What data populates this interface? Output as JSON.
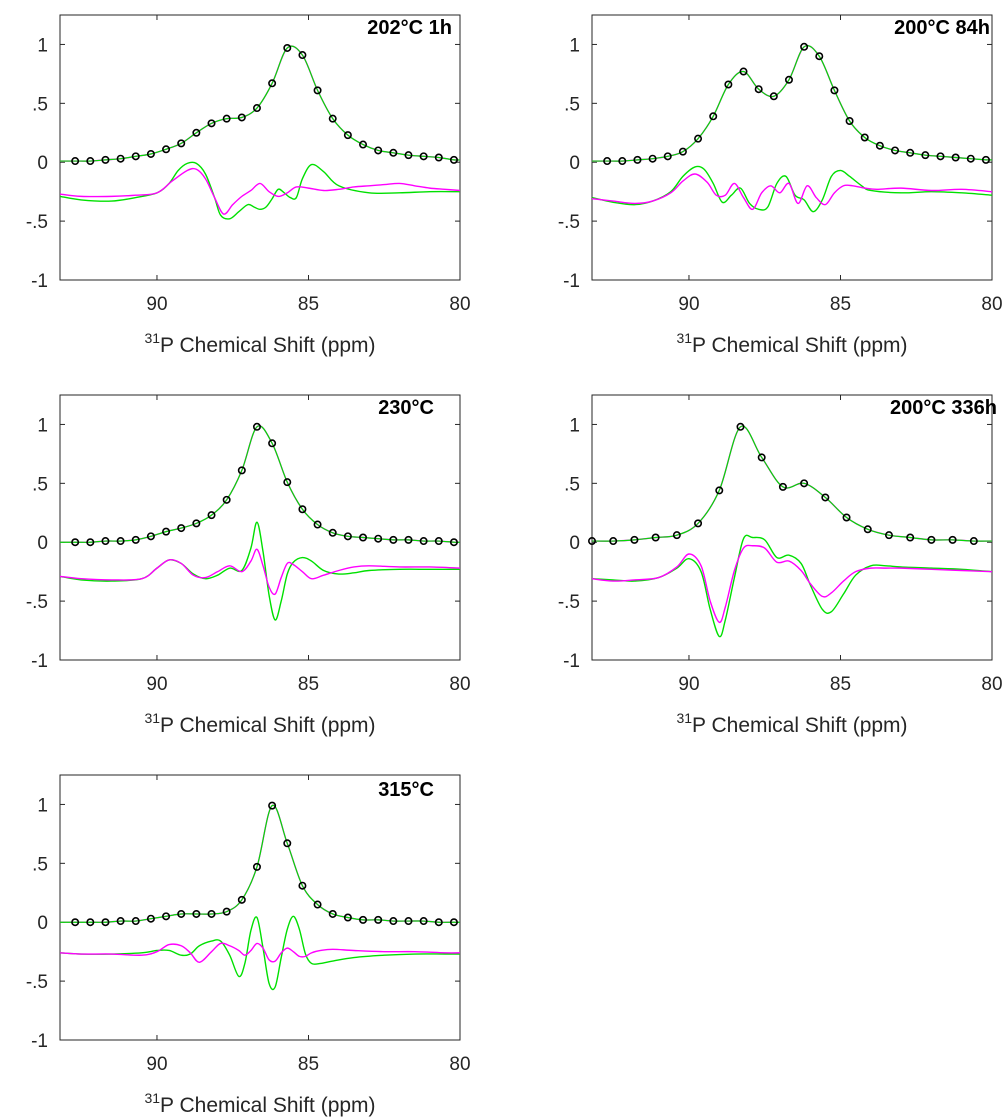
{
  "colors": {
    "fit_magenta": "#ff00ff",
    "fit_green": "#00e000",
    "marker": "#000000",
    "axes": "#262626"
  },
  "chart_data": [
    {
      "type": "line",
      "title": "202°C 1h",
      "xlabel": "31P Chemical Shift (ppm)",
      "xlabel_sup": "31",
      "xlabel_rest": "P Chemical Shift (ppm)",
      "xlim": [
        93.2,
        80
      ],
      "ylim": [
        -1,
        1.25
      ],
      "xticks": [
        90,
        85,
        80
      ],
      "yticks": [
        -1,
        -0.5,
        0,
        0.5,
        1
      ],
      "scatter_x": [
        92.7,
        92.2,
        91.7,
        91.2,
        90.7,
        90.2,
        89.7,
        89.2,
        88.7,
        88.2,
        87.7,
        87.2,
        86.7,
        86.2,
        85.7,
        85.2,
        84.7,
        84.2,
        83.7,
        83.2,
        82.7,
        82.2,
        81.7,
        81.2,
        80.7,
        80.2
      ],
      "scatter_y": [
        0.01,
        0.01,
        0.02,
        0.03,
        0.05,
        0.07,
        0.11,
        0.16,
        0.25,
        0.33,
        0.37,
        0.38,
        0.46,
        0.67,
        0.97,
        0.91,
        0.61,
        0.37,
        0.23,
        0.15,
        0.1,
        0.08,
        0.06,
        0.05,
        0.04,
        0.02
      ],
      "series": [
        {
          "color": "#00e000",
          "x": [
            93.2,
            92.5,
            91.5,
            90.7,
            90.0,
            89.6,
            89.3,
            89.0,
            88.7,
            88.4,
            88.1,
            87.9,
            87.6,
            87.3,
            87.0,
            86.8,
            86.6,
            86.4,
            86.2,
            86.0,
            85.8,
            85.6,
            85.4,
            85.2,
            84.9,
            84.5,
            84.0,
            83.0,
            82.0,
            81.0,
            80.0
          ],
          "y": [
            -0.29,
            -0.32,
            -0.33,
            -0.3,
            -0.26,
            -0.18,
            -0.07,
            -0.01,
            -0.01,
            -0.1,
            -0.3,
            -0.45,
            -0.48,
            -0.42,
            -0.36,
            -0.38,
            -0.4,
            -0.38,
            -0.31,
            -0.23,
            -0.26,
            -0.3,
            -0.3,
            -0.14,
            -0.02,
            -0.08,
            -0.2,
            -0.26,
            -0.26,
            -0.25,
            -0.25
          ]
        },
        {
          "color": "#ff00ff",
          "x": [
            93.2,
            92.5,
            91.5,
            90.7,
            90.0,
            89.5,
            89.0,
            88.7,
            88.4,
            88.1,
            87.8,
            87.5,
            87.2,
            86.9,
            86.6,
            86.3,
            86.0,
            85.7,
            85.4,
            85.0,
            84.5,
            84.0,
            83.5,
            83.0,
            82.5,
            82.0,
            81.5,
            81.0,
            80.5,
            80.0
          ],
          "y": [
            -0.27,
            -0.29,
            -0.29,
            -0.28,
            -0.26,
            -0.16,
            -0.07,
            -0.06,
            -0.14,
            -0.3,
            -0.44,
            -0.36,
            -0.29,
            -0.24,
            -0.18,
            -0.25,
            -0.29,
            -0.26,
            -0.21,
            -0.22,
            -0.24,
            -0.23,
            -0.21,
            -0.2,
            -0.19,
            -0.18,
            -0.2,
            -0.22,
            -0.23,
            -0.24
          ]
        }
      ]
    },
    {
      "type": "line",
      "title": "200°C 84h",
      "xlabel": "31P Chemical Shift (ppm)",
      "xlabel_sup": "31",
      "xlabel_rest": "P Chemical Shift (ppm)",
      "xlim": [
        93.2,
        80
      ],
      "ylim": [
        -1,
        1.25
      ],
      "xticks": [
        90,
        85,
        80
      ],
      "yticks": [
        -1,
        -0.5,
        0,
        0.5,
        1
      ],
      "scatter_x": [
        92.7,
        92.2,
        91.7,
        91.2,
        90.7,
        90.2,
        89.7,
        89.2,
        88.7,
        88.2,
        87.7,
        87.2,
        86.7,
        86.2,
        85.7,
        85.2,
        84.7,
        84.2,
        83.7,
        83.2,
        82.7,
        82.2,
        81.7,
        81.2,
        80.7,
        80.2
      ],
      "scatter_y": [
        0.01,
        0.01,
        0.02,
        0.03,
        0.05,
        0.09,
        0.2,
        0.39,
        0.66,
        0.77,
        0.62,
        0.56,
        0.7,
        0.98,
        0.9,
        0.61,
        0.35,
        0.21,
        0.14,
        0.1,
        0.08,
        0.06,
        0.05,
        0.04,
        0.03,
        0.02
      ],
      "series": [
        {
          "color": "#00e000",
          "x": [
            93.2,
            92.5,
            91.8,
            91.2,
            90.6,
            90.2,
            89.8,
            89.5,
            89.2,
            88.9,
            88.6,
            88.3,
            88.0,
            87.7,
            87.4,
            87.1,
            86.8,
            86.5,
            86.2,
            85.9,
            85.6,
            85.3,
            85.0,
            84.7,
            84.3,
            84.0,
            83.0,
            82.0,
            81.0,
            80.0
          ],
          "y": [
            -0.3,
            -0.34,
            -0.36,
            -0.33,
            -0.25,
            -0.12,
            -0.04,
            -0.06,
            -0.18,
            -0.34,
            -0.28,
            -0.22,
            -0.35,
            -0.4,
            -0.38,
            -0.18,
            -0.12,
            -0.28,
            -0.32,
            -0.42,
            -0.32,
            -0.12,
            -0.07,
            -0.12,
            -0.2,
            -0.24,
            -0.26,
            -0.25,
            -0.26,
            -0.28
          ]
        },
        {
          "color": "#ff00ff",
          "x": [
            93.2,
            92.5,
            91.8,
            91.2,
            90.6,
            90.2,
            89.8,
            89.4,
            89.1,
            88.8,
            88.5,
            88.2,
            87.9,
            87.6,
            87.3,
            87.0,
            86.7,
            86.4,
            86.1,
            85.8,
            85.5,
            85.2,
            84.9,
            84.6,
            84.2,
            83.8,
            83.0,
            82.0,
            81.0,
            80.0
          ],
          "y": [
            -0.31,
            -0.33,
            -0.35,
            -0.33,
            -0.26,
            -0.16,
            -0.1,
            -0.17,
            -0.28,
            -0.28,
            -0.18,
            -0.3,
            -0.4,
            -0.26,
            -0.2,
            -0.26,
            -0.18,
            -0.35,
            -0.2,
            -0.3,
            -0.36,
            -0.26,
            -0.2,
            -0.2,
            -0.22,
            -0.23,
            -0.22,
            -0.24,
            -0.23,
            -0.25
          ]
        }
      ]
    },
    {
      "type": "line",
      "title": "230°C",
      "xlabel": "31P Chemical Shift (ppm)",
      "xlabel_sup": "31",
      "xlabel_rest": "P Chemical Shift (ppm)",
      "xlim": [
        93.2,
        80
      ],
      "ylim": [
        -1,
        1.25
      ],
      "xticks": [
        90,
        85,
        80
      ],
      "yticks": [
        -1,
        -0.5,
        0,
        0.5,
        1
      ],
      "scatter_x": [
        92.7,
        92.2,
        91.7,
        91.2,
        90.7,
        90.2,
        89.7,
        89.2,
        88.7,
        88.2,
        87.7,
        87.2,
        86.7,
        86.2,
        85.7,
        85.2,
        84.7,
        84.2,
        83.7,
        83.2,
        82.7,
        82.2,
        81.7,
        81.2,
        80.7,
        80.2
      ],
      "scatter_y": [
        0.0,
        0.0,
        0.01,
        0.01,
        0.02,
        0.05,
        0.09,
        0.12,
        0.16,
        0.23,
        0.36,
        0.61,
        0.98,
        0.84,
        0.51,
        0.28,
        0.15,
        0.08,
        0.05,
        0.04,
        0.03,
        0.02,
        0.02,
        0.01,
        0.01,
        0.0
      ],
      "series": [
        {
          "color": "#00e000",
          "x": [
            93.2,
            92.5,
            91.5,
            90.5,
            90.0,
            89.6,
            89.2,
            88.8,
            88.4,
            88.0,
            87.6,
            87.2,
            86.9,
            86.7,
            86.5,
            86.3,
            86.1,
            85.9,
            85.7,
            85.5,
            85.2,
            84.9,
            84.5,
            84.0,
            83.5,
            83.0,
            82.0,
            81.0,
            80.0
          ],
          "y": [
            -0.29,
            -0.32,
            -0.33,
            -0.31,
            -0.22,
            -0.15,
            -0.18,
            -0.27,
            -0.31,
            -0.28,
            -0.22,
            -0.24,
            -0.05,
            0.17,
            -0.08,
            -0.45,
            -0.66,
            -0.5,
            -0.27,
            -0.17,
            -0.13,
            -0.16,
            -0.24,
            -0.27,
            -0.26,
            -0.24,
            -0.23,
            -0.23,
            -0.23
          ]
        },
        {
          "color": "#ff00ff",
          "x": [
            93.2,
            92.5,
            91.5,
            90.5,
            90.0,
            89.6,
            89.2,
            88.8,
            88.4,
            88.0,
            87.6,
            87.2,
            86.9,
            86.7,
            86.5,
            86.3,
            86.1,
            85.9,
            85.7,
            85.5,
            85.2,
            84.9,
            84.5,
            84.0,
            83.5,
            83.0,
            82.0,
            81.0,
            80.0
          ],
          "y": [
            -0.29,
            -0.31,
            -0.32,
            -0.31,
            -0.22,
            -0.15,
            -0.18,
            -0.28,
            -0.3,
            -0.25,
            -0.2,
            -0.25,
            -0.16,
            -0.06,
            -0.2,
            -0.38,
            -0.44,
            -0.3,
            -0.18,
            -0.19,
            -0.25,
            -0.31,
            -0.28,
            -0.24,
            -0.21,
            -0.2,
            -0.21,
            -0.21,
            -0.22
          ]
        }
      ]
    },
    {
      "type": "line",
      "title": "200°C 336h",
      "xlabel": "31P Chemical Shift (ppm)",
      "xlabel_sup": "31",
      "xlabel_rest": "P Chemical Shift (ppm)",
      "xlim": [
        93.2,
        80
      ],
      "ylim": [
        -1,
        1.25
      ],
      "xticks": [
        90,
        85,
        80
      ],
      "yticks": [
        -1,
        -0.5,
        0,
        0.5,
        1
      ],
      "scatter_x": [
        93.2,
        92.5,
        91.8,
        91.1,
        90.4,
        89.7,
        89.0,
        88.3,
        87.6,
        86.9,
        86.2,
        85.5,
        84.8,
        84.1,
        83.4,
        82.7,
        82.0,
        81.3,
        80.6
      ],
      "scatter_y": [
        0.01,
        0.01,
        0.02,
        0.04,
        0.06,
        0.16,
        0.44,
        0.98,
        0.72,
        0.47,
        0.5,
        0.38,
        0.21,
        0.11,
        0.06,
        0.04,
        0.02,
        0.02,
        0.01
      ],
      "series": [
        {
          "color": "#00e000",
          "x": [
            93.2,
            92.5,
            91.8,
            91.0,
            90.4,
            90.0,
            89.6,
            89.3,
            89.0,
            88.8,
            88.5,
            88.2,
            87.9,
            87.5,
            87.1,
            86.7,
            86.3,
            86.0,
            85.6,
            85.3,
            84.9,
            84.5,
            84.0,
            83.5,
            83.0,
            82.0,
            81.0,
            80.0
          ],
          "y": [
            -0.31,
            -0.32,
            -0.33,
            -0.3,
            -0.22,
            -0.14,
            -0.25,
            -0.57,
            -0.8,
            -0.66,
            -0.3,
            0.03,
            0.04,
            0.02,
            -0.13,
            -0.11,
            -0.18,
            -0.36,
            -0.57,
            -0.59,
            -0.44,
            -0.28,
            -0.2,
            -0.2,
            -0.21,
            -0.22,
            -0.23,
            -0.25
          ]
        },
        {
          "color": "#ff00ff",
          "x": [
            93.2,
            92.5,
            91.8,
            91.0,
            90.4,
            90.0,
            89.6,
            89.3,
            89.0,
            88.8,
            88.5,
            88.2,
            87.9,
            87.5,
            87.1,
            86.7,
            86.3,
            86.0,
            85.6,
            85.3,
            84.9,
            84.5,
            84.0,
            83.5,
            83.0,
            82.0,
            81.0,
            80.0
          ],
          "y": [
            -0.31,
            -0.33,
            -0.32,
            -0.3,
            -0.21,
            -0.1,
            -0.2,
            -0.5,
            -0.68,
            -0.55,
            -0.24,
            -0.05,
            -0.03,
            -0.05,
            -0.17,
            -0.16,
            -0.24,
            -0.35,
            -0.46,
            -0.43,
            -0.33,
            -0.25,
            -0.22,
            -0.22,
            -0.22,
            -0.23,
            -0.24,
            -0.25
          ]
        }
      ]
    },
    {
      "type": "line",
      "title": "315°C",
      "xlabel": "31P Chemical Shift (ppm)",
      "xlabel_sup": "31",
      "xlabel_rest": "P Chemical Shift (ppm)",
      "xlim": [
        93.2,
        80
      ],
      "ylim": [
        -1,
        1.25
      ],
      "xticks": [
        90,
        85,
        80
      ],
      "yticks": [
        -1,
        -0.5,
        0,
        0.5,
        1
      ],
      "scatter_x": [
        92.7,
        92.2,
        91.7,
        91.2,
        90.7,
        90.2,
        89.7,
        89.2,
        88.7,
        88.2,
        87.7,
        87.2,
        86.7,
        86.2,
        85.7,
        85.2,
        84.7,
        84.2,
        83.7,
        83.2,
        82.7,
        82.2,
        81.7,
        81.2,
        80.7,
        80.2
      ],
      "scatter_y": [
        0.0,
        0.0,
        0.0,
        0.01,
        0.01,
        0.03,
        0.05,
        0.07,
        0.07,
        0.07,
        0.09,
        0.19,
        0.47,
        0.99,
        0.67,
        0.31,
        0.15,
        0.07,
        0.04,
        0.02,
        0.02,
        0.01,
        0.01,
        0.01,
        0.0,
        0.0
      ],
      "series": [
        {
          "color": "#00e000",
          "x": [
            93.2,
            92.5,
            91.5,
            90.5,
            90.0,
            89.6,
            89.2,
            88.9,
            88.6,
            88.2,
            87.9,
            87.6,
            87.3,
            87.1,
            86.9,
            86.7,
            86.5,
            86.3,
            86.1,
            85.9,
            85.7,
            85.5,
            85.3,
            85.1,
            84.9,
            84.6,
            84.2,
            83.5,
            82.5,
            81.5,
            80.5,
            80.0
          ],
          "y": [
            -0.26,
            -0.27,
            -0.27,
            -0.26,
            -0.24,
            -0.24,
            -0.28,
            -0.27,
            -0.2,
            -0.16,
            -0.16,
            -0.28,
            -0.46,
            -0.35,
            -0.07,
            0.04,
            -0.22,
            -0.52,
            -0.55,
            -0.3,
            -0.06,
            0.05,
            -0.06,
            -0.27,
            -0.35,
            -0.35,
            -0.33,
            -0.3,
            -0.28,
            -0.27,
            -0.27,
            -0.27
          ]
        },
        {
          "color": "#ff00ff",
          "x": [
            93.2,
            92.5,
            91.5,
            90.5,
            90.0,
            89.6,
            89.2,
            88.9,
            88.6,
            88.2,
            87.9,
            87.6,
            87.3,
            87.1,
            86.9,
            86.7,
            86.5,
            86.3,
            86.1,
            85.9,
            85.7,
            85.5,
            85.3,
            85.1,
            84.9,
            84.6,
            84.2,
            83.5,
            82.5,
            81.5,
            80.5,
            80.0
          ],
          "y": [
            -0.26,
            -0.27,
            -0.27,
            -0.28,
            -0.25,
            -0.19,
            -0.2,
            -0.26,
            -0.34,
            -0.25,
            -0.18,
            -0.2,
            -0.24,
            -0.28,
            -0.24,
            -0.18,
            -0.22,
            -0.32,
            -0.33,
            -0.26,
            -0.22,
            -0.25,
            -0.29,
            -0.29,
            -0.26,
            -0.24,
            -0.23,
            -0.24,
            -0.25,
            -0.25,
            -0.26,
            -0.26
          ]
        }
      ]
    }
  ]
}
